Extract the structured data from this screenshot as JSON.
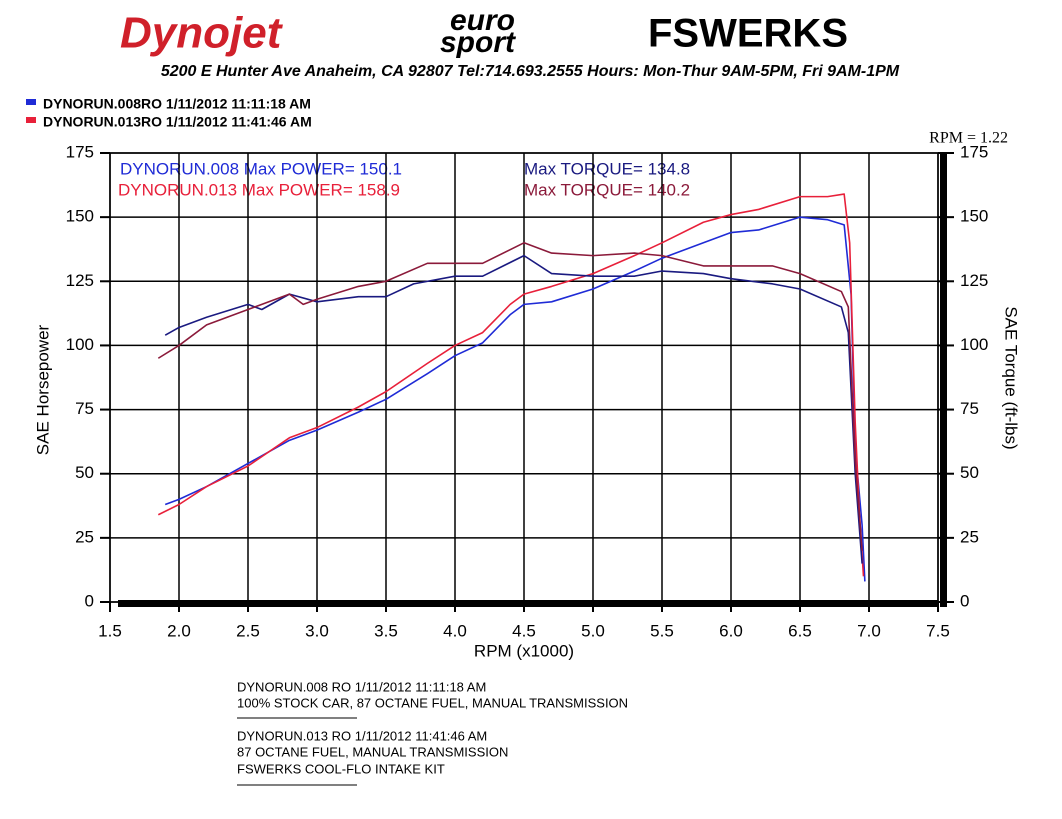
{
  "header": {
    "logo_left": "Dynojet",
    "logo_mid_top": "euro",
    "logo_mid_bottom": "sport",
    "logo_right": "FSWERKS",
    "address": "5200 E Hunter Ave  Anaheim, CA 92807  Tel:714.693.2555  Hours: Mon-Thur 9AM-5PM, Fri 9AM-1PM"
  },
  "legend": [
    {
      "text": "DYNORUN.008RO  1/11/2012 11:11:18 AM",
      "color": "#1f2bd6"
    },
    {
      "text": "DYNORUN.013RO  1/11/2012 11:41:46 AM",
      "color": "#e8203a"
    }
  ],
  "rpm_note": "RPM = 1.22",
  "chart_data": {
    "type": "line",
    "xlabel": "RPM (x1000)",
    "ylabel": "SAE Horsepower",
    "y2label": "SAE Torque (ft-lbs)",
    "annotations": [
      {
        "text": "DYNORUN.008  Max POWER= 150.1",
        "color": "#1f2bd6"
      },
      {
        "text": "Max TORQUE= 134.8",
        "color": "#1a1a80"
      },
      {
        "text": "DYNORUN.013  Max POWER= 158.9",
        "color": "#e8203a"
      },
      {
        "text": "Max TORQUE= 140.2",
        "color": "#8b1a3a"
      }
    ],
    "xlim": [
      1.5,
      7.5
    ],
    "xticks": [
      1.5,
      {
        "value": 2,
        "label": "2.0"
      },
      2.5,
      {
        "value": 3,
        "label": "3.0"
      },
      3.5,
      {
        "value": 4,
        "label": "4.0"
      },
      4.5,
      {
        "value": 5,
        "label": "5.0"
      },
      5.5,
      {
        "value": 6,
        "label": "6.0"
      },
      6.5,
      {
        "value": 7,
        "label": "7.0"
      },
      7.5
    ],
    "ylim": [
      0,
      175
    ],
    "yticks": [
      0,
      25,
      50,
      75,
      100,
      125,
      150,
      175
    ],
    "y2lim": [
      0,
      175
    ],
    "y2ticks": [
      0,
      25,
      50,
      75,
      100,
      125,
      150,
      175
    ],
    "grid": true,
    "series": [
      {
        "color": "#1f2bd6",
        "x": [
          1.9,
          2.0,
          2.2,
          2.5,
          2.8,
          3.0,
          3.3,
          3.5,
          3.8,
          4.0,
          4.2,
          4.4,
          4.5,
          4.7,
          5.0,
          5.3,
          5.5,
          5.8,
          6.0,
          6.2,
          6.5,
          6.7,
          6.82,
          6.87,
          6.9,
          6.95,
          6.97
        ],
        "values": [
          38,
          40,
          45,
          54,
          63,
          67,
          74,
          79,
          89,
          96,
          101,
          112,
          116,
          117,
          122,
          129,
          134,
          140,
          144,
          145,
          150,
          149,
          147,
          120,
          60,
          30,
          8
        ]
      },
      {
        "color": "#e8203a",
        "x": [
          1.85,
          2.0,
          2.2,
          2.5,
          2.8,
          3.0,
          3.3,
          3.5,
          3.8,
          4.0,
          4.2,
          4.4,
          4.5,
          4.7,
          5.0,
          5.3,
          5.5,
          5.8,
          6.0,
          6.2,
          6.5,
          6.7,
          6.82,
          6.86,
          6.9,
          6.93,
          6.96
        ],
        "values": [
          34,
          38,
          45,
          53,
          64,
          68,
          76,
          82,
          93,
          100,
          105,
          116,
          120,
          123,
          128,
          135,
          140,
          148,
          151,
          153,
          158,
          158,
          159,
          140,
          70,
          35,
          10
        ]
      },
      {
        "color": "#1a1a80",
        "axis": "y2",
        "x": [
          1.9,
          2.0,
          2.2,
          2.5,
          2.6,
          2.8,
          3.0,
          3.3,
          3.5,
          3.7,
          4.0,
          4.2,
          4.5,
          4.7,
          5.0,
          5.3,
          5.5,
          5.8,
          6.0,
          6.3,
          6.5,
          6.8,
          6.85,
          6.9,
          6.95
        ],
        "values": [
          104,
          107,
          111,
          116,
          114,
          120,
          117,
          119,
          119,
          124,
          127,
          127,
          135,
          128,
          127,
          127,
          129,
          128,
          126,
          124,
          122,
          115,
          105,
          50,
          15
        ]
      },
      {
        "color": "#8b1a3a",
        "axis": "y2",
        "x": [
          1.85,
          2.0,
          2.2,
          2.5,
          2.6,
          2.8,
          2.9,
          3.0,
          3.3,
          3.5,
          3.8,
          4.0,
          4.2,
          4.5,
          4.7,
          5.0,
          5.3,
          5.5,
          5.8,
          6.0,
          6.3,
          6.5,
          6.8,
          6.85,
          6.9,
          6.95
        ],
        "values": [
          95,
          100,
          108,
          114,
          116,
          120,
          116,
          118,
          123,
          125,
          132,
          132,
          132,
          140,
          136,
          135,
          136,
          135,
          131,
          131,
          131,
          128,
          121,
          115,
          55,
          20
        ]
      }
    ]
  },
  "notes": [
    [
      "DYNORUN.008        RO   1/11/2012 11:11:18 AM",
      "100% STOCK CAR, 87 OCTANE FUEL, MANUAL TRANSMISSION"
    ],
    [
      "DYNORUN.013        RO   1/11/2012 11:41:46 AM",
      "87 OCTANE FUEL, MANUAL TRANSMISSION",
      "FSWERKS COOL-FLO INTAKE KIT"
    ]
  ]
}
